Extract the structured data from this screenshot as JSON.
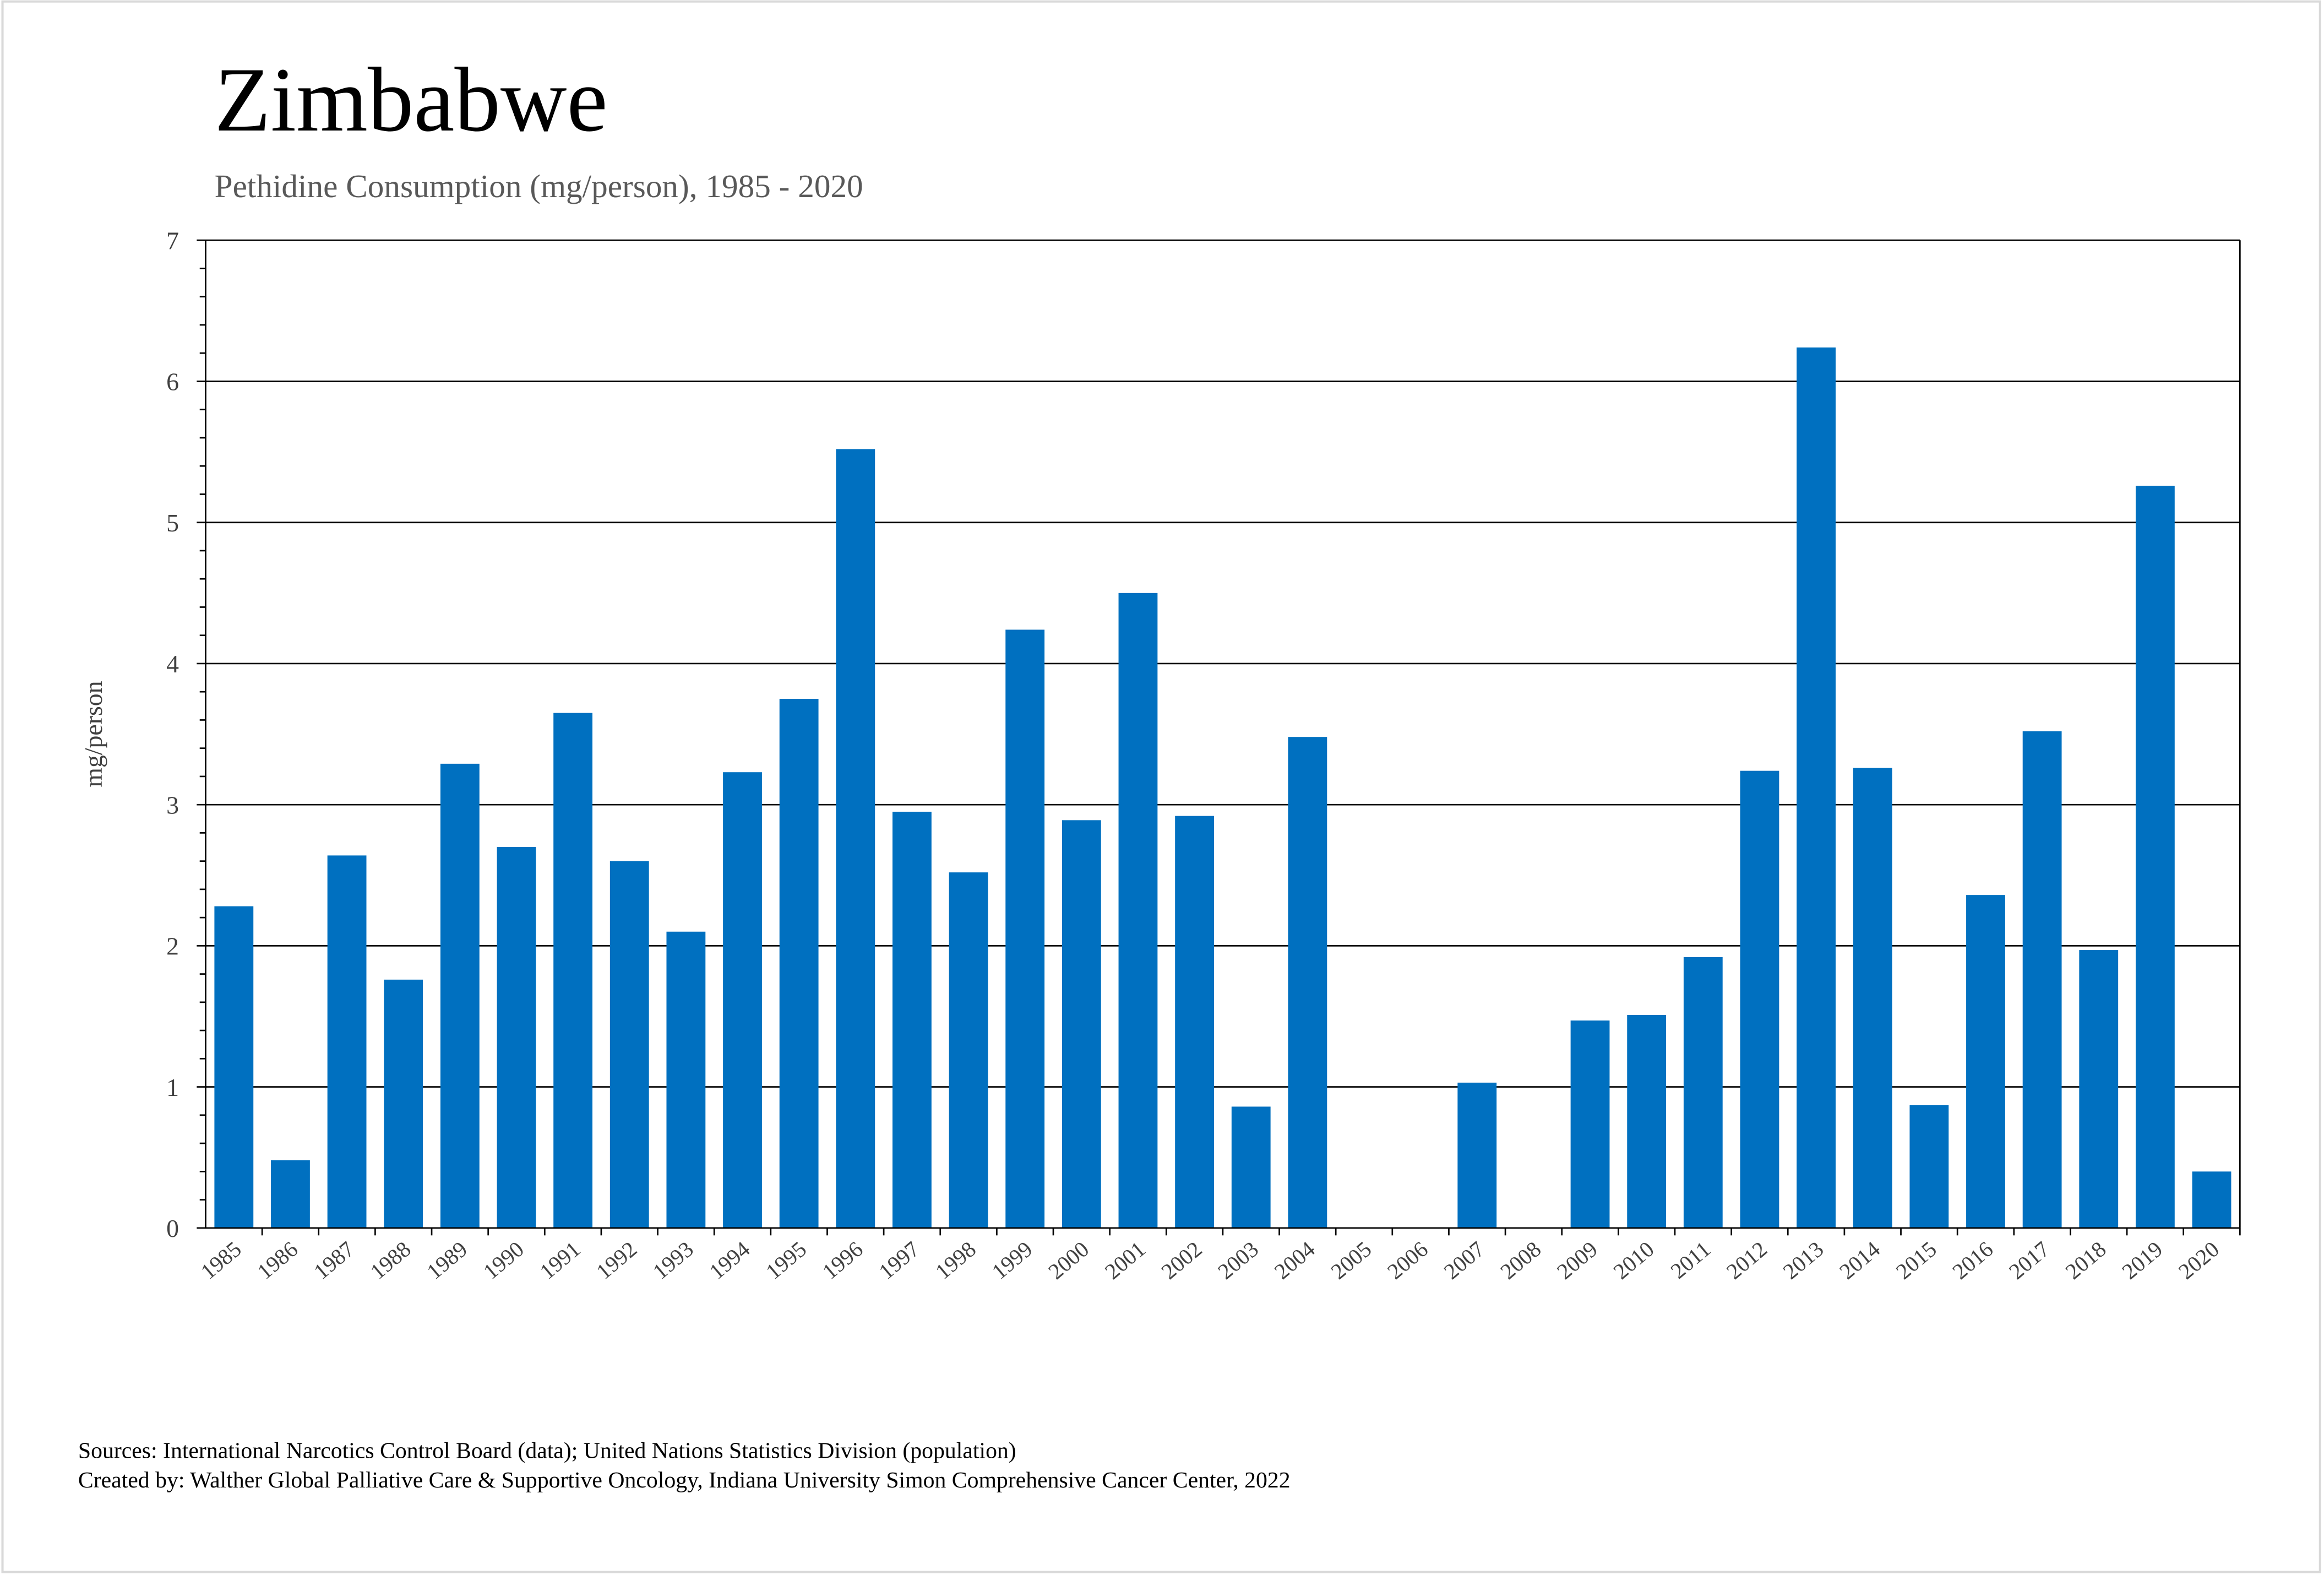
{
  "title": "Zimbabwe",
  "subtitle": "Pethidine Consumption (mg/person), 1985 - 2020",
  "footer": {
    "sources": "Sources: International Narcotics Control Board (data); United Nations Statistics Division (population)",
    "created_by": "Created by: Walther Global Palliative Care & Supportive Oncology, Indiana University Simon Comprehensive Cancer Center, 2022"
  },
  "colors": {
    "bar": "#0070C0",
    "grid": "#000000",
    "title": "#000000",
    "subtitle": "#595959"
  },
  "chart_data": {
    "type": "bar",
    "title": "Zimbabwe",
    "subtitle": "Pethidine Consumption (mg/person), 1985 - 2020",
    "xlabel": "",
    "ylabel": "mg/person",
    "ylim": [
      0,
      7
    ],
    "yticks": [
      "0",
      "1",
      "2",
      "3",
      "4",
      "5",
      "6",
      "7"
    ],
    "grid": true,
    "categories": [
      "1985",
      "1986",
      "1987",
      "1988",
      "1989",
      "1990",
      "1991",
      "1992",
      "1993",
      "1994",
      "1995",
      "1996",
      "1997",
      "1998",
      "1999",
      "2000",
      "2001",
      "2002",
      "2003",
      "2004",
      "2005",
      "2006",
      "2007",
      "2008",
      "2009",
      "2010",
      "2011",
      "2012",
      "2013",
      "2014",
      "2015",
      "2016",
      "2017",
      "2018",
      "2019",
      "2020"
    ],
    "values": [
      2.28,
      0.48,
      2.64,
      1.76,
      3.29,
      2.7,
      3.65,
      2.6,
      2.1,
      3.23,
      3.75,
      5.52,
      2.95,
      2.52,
      4.24,
      2.89,
      4.5,
      2.92,
      0.86,
      3.48,
      0,
      0,
      1.03,
      0,
      1.47,
      1.51,
      1.92,
      3.24,
      6.24,
      3.26,
      0.87,
      2.36,
      3.52,
      1.97,
      5.26,
      0.4
    ]
  }
}
